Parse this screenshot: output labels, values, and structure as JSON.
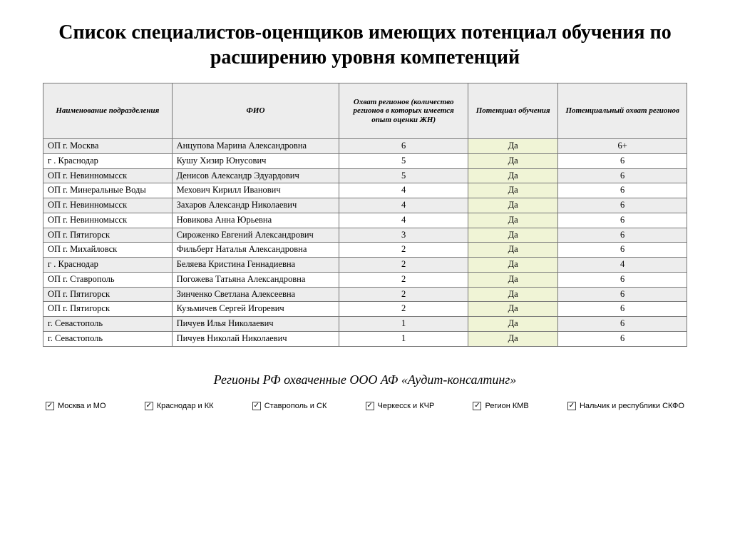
{
  "title": "Список специалистов-оценщиков имеющих потенциал обучения по расширению уровня компетенций",
  "subtitle": "Регионы РФ охваченные ООО АФ «Аудит-консалтинг»",
  "table": {
    "col_widths": [
      "20%",
      "26%",
      "20%",
      "14%",
      "20%"
    ],
    "header_bg": "#ededed",
    "stripe_bg": "#ededed",
    "highlight_bg": "#f0f4d6",
    "border_color": "#777777",
    "columns": [
      "Наименование подразделения",
      "ФИО",
      "Охват регионов (количество регионов в которых имеется опыт оценки ЖН)",
      "Потенциал обучения",
      "Потенциальный охват регионов"
    ],
    "rows": [
      {
        "dept": "ОП г. Москва",
        "name": "Анцупова Марина Александровна",
        "reach": "6",
        "pot": "Да",
        "pot_reach": "6+"
      },
      {
        "dept": "г . Краснодар",
        "name": "Кушу Хизир Юнусович",
        "reach": "5",
        "pot": "Да",
        "pot_reach": "6"
      },
      {
        "dept": "ОП г. Невинномысск",
        "name": "Денисов Александр Эдуардович",
        "reach": "5",
        "pot": "Да",
        "pot_reach": "6"
      },
      {
        "dept": "ОП г. Минеральные Воды",
        "name": "Мехович Кирилл Иванович",
        "reach": "4",
        "pot": "Да",
        "pot_reach": "6"
      },
      {
        "dept": "ОП г. Невинномысск",
        "name": "Захаров Александр Николаевич",
        "reach": "4",
        "pot": "Да",
        "pot_reach": "6"
      },
      {
        "dept": "ОП г. Невинномысск",
        "name": "Новикова Анна Юрьевна",
        "reach": "4",
        "pot": "Да",
        "pot_reach": "6"
      },
      {
        "dept": "ОП г. Пятигорск",
        "name": "Сироженко Евгений Александрович",
        "reach": "3",
        "pot": "Да",
        "pot_reach": "6"
      },
      {
        "dept": "ОП г. Михайловск",
        "name": "Фильберт Наталья Александровна",
        "reach": "2",
        "pot": "Да",
        "pot_reach": "6"
      },
      {
        "dept": "г . Краснодар",
        "name": "Беляева Кристина Геннадиевна",
        "reach": "2",
        "pot": "Да",
        "pot_reach": "4"
      },
      {
        "dept": "ОП г. Ставрополь",
        "name": "Погожева Татьяна Александровна",
        "reach": "2",
        "pot": "Да",
        "pot_reach": "6"
      },
      {
        "dept": "ОП г. Пятигорск",
        "name": "Зинченко Светлана Алексеевна",
        "reach": "2",
        "pot": "Да",
        "pot_reach": "6"
      },
      {
        "dept": "ОП г. Пятигорск",
        "name": "Кузьмичев Сергей Игоревич",
        "reach": "2",
        "pot": "Да",
        "pot_reach": "6"
      },
      {
        "dept": "г. Севастополь",
        "name": "Пичуев Илья Николаевич",
        "reach": "1",
        "pot": "Да",
        "pot_reach": "6"
      },
      {
        "dept": "г. Севастополь",
        "name": "Пичуев Николай Николаевич",
        "reach": "1",
        "pot": "Да",
        "pot_reach": "6"
      }
    ]
  },
  "checkboxes": [
    {
      "label": "Москва и МО",
      "checked": true
    },
    {
      "label": "Краснодар и КК",
      "checked": true
    },
    {
      "label": "Ставрополь и СК",
      "checked": true
    },
    {
      "label": "Черкесск и КЧР",
      "checked": true
    },
    {
      "label": "Регион КМВ",
      "checked": true
    },
    {
      "label": "Нальчик и республики СКФО",
      "checked": true
    }
  ]
}
